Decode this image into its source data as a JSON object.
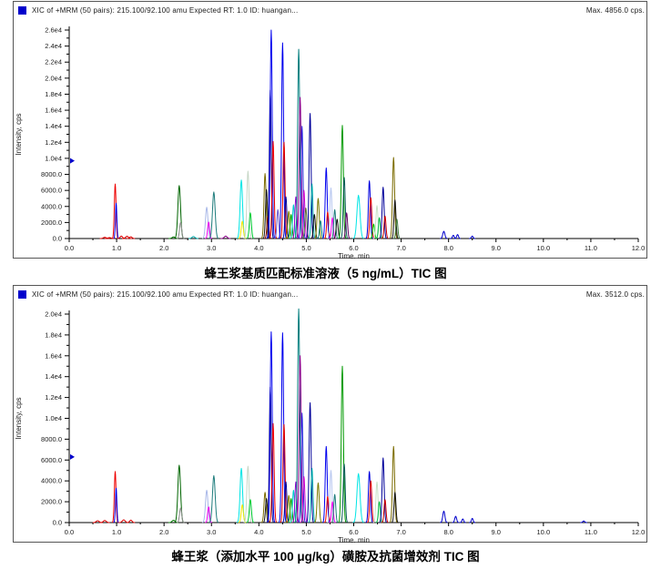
{
  "panels": [
    {
      "header": {
        "icon_color": "#0000CC",
        "title": "XIC of +MRM (50 pairs): 215.100/92.100 amu Expected RT: 1.0 ID: huangan...",
        "max_label": "Max. 4856.0 cps."
      },
      "caption": "蜂王浆基质匹配标准溶液（5 ng/mL）TIC 图"
    },
    {
      "header": {
        "icon_color": "#0000CC",
        "title": "XIC of +MRM (50 pairs): 215.100/92.100 amu Expected RT: 1.0 ID: huangan...",
        "max_label": "Max. 3512.0 cps."
      },
      "caption": "蜂王浆（添加水平 100 μg/kg）磺胺及抗菌增效剂 TIC 图"
    }
  ],
  "chart_data": [
    {
      "type": "line",
      "title": "XIC of +MRM (50 pairs): 215.100/92.100 amu Expected RT: 1.0 ID: huangan...",
      "subtitle": "蜂王浆基质匹配标准溶液（5 ng/mL）TIC 图",
      "max_cps": 4856.0,
      "xlabel": "Time, min",
      "ylabel": "Intensity, cps",
      "x_min": 0.0,
      "x_max": 12.0,
      "y_min": 0,
      "y_max": 26000,
      "grid": false,
      "legend": "none",
      "x_ticks": [
        "0.0",
        "1.0",
        "2.0",
        "3.0",
        "4.0",
        "5.0",
        "6.0",
        "7.0",
        "8.0",
        "9.0",
        "10.0",
        "11.0",
        "12.0"
      ],
      "y_ticks": [
        [
          0,
          "0.0"
        ],
        [
          2000,
          "2000.0"
        ],
        [
          4000,
          "4000.0"
        ],
        [
          6000,
          "6000.0"
        ],
        [
          8000,
          "8000.0"
        ],
        [
          10000,
          "1.0e4"
        ],
        [
          12000,
          "1.2e4"
        ],
        [
          14000,
          "1.4e4"
        ],
        [
          16000,
          "1.6e4"
        ],
        [
          18000,
          "1.8e4"
        ],
        [
          20000,
          "2.0e4"
        ],
        [
          22000,
          "2.2e4"
        ],
        [
          24000,
          "2.4e4"
        ],
        [
          26000,
          "2.6e4"
        ]
      ],
      "edge_marker_cps": 9700,
      "edge_marker_color": "#0000CC",
      "peaks_format": [
        "time_min",
        "intensity_cps",
        "trace_color",
        "sigma_min"
      ],
      "peaks": [
        [
          0.75,
          150,
          "#DD0000",
          0.03
        ],
        [
          0.85,
          120,
          "#DD0000",
          0.03
        ],
        [
          0.97,
          6800,
          "#EE0000",
          0.018
        ],
        [
          0.99,
          4400,
          "#0000EE",
          0.015
        ],
        [
          1.1,
          300,
          "#DD0000",
          0.025
        ],
        [
          1.22,
          280,
          "#DD0000",
          0.03
        ],
        [
          1.3,
          220,
          "#DD0000",
          0.025
        ],
        [
          2.2,
          200,
          "#007700",
          0.03
        ],
        [
          2.32,
          6600,
          "#006400",
          0.028
        ],
        [
          2.35,
          2000,
          "#888888",
          0.022
        ],
        [
          2.62,
          250,
          "#00AAAA",
          0.03
        ],
        [
          2.9,
          3900,
          "#A9B8E8",
          0.026
        ],
        [
          2.94,
          2050,
          "#EE00EE",
          0.02
        ],
        [
          3.05,
          5800,
          "#1E7C7C",
          0.028
        ],
        [
          3.3,
          300,
          "#880088",
          0.03
        ],
        [
          3.63,
          7300,
          "#00E5E5",
          0.026
        ],
        [
          3.65,
          2150,
          "#F5E500",
          0.022
        ],
        [
          3.77,
          8400,
          "#C7D7C7",
          0.024
        ],
        [
          3.82,
          3200,
          "#00CC33",
          0.022
        ],
        [
          4.13,
          8100,
          "#7B6B00",
          0.022
        ],
        [
          4.16,
          6100,
          "#151515",
          0.02
        ],
        [
          4.19,
          2800,
          "#8B0000",
          0.02
        ],
        [
          4.24,
          18500,
          "#000080",
          0.019
        ],
        [
          4.26,
          26000,
          "#0000EE",
          0.021
        ],
        [
          4.3,
          12100,
          "#EE0000",
          0.021
        ],
        [
          4.4,
          3600,
          "#6A5ACD",
          0.02
        ],
        [
          4.5,
          24400,
          "#0000EE",
          0.021
        ],
        [
          4.53,
          12000,
          "#DD0000",
          0.021
        ],
        [
          4.57,
          5200,
          "#000099",
          0.02
        ],
        [
          4.63,
          3400,
          "#808000",
          0.02
        ],
        [
          4.68,
          3000,
          "#00AA00",
          0.02
        ],
        [
          4.73,
          4200,
          "#00CCCC",
          0.02
        ],
        [
          4.78,
          5200,
          "#9400D3",
          0.02
        ],
        [
          4.84,
          23600,
          "#007D7D",
          0.022
        ],
        [
          4.87,
          17600,
          "#8B008B",
          0.021
        ],
        [
          4.91,
          14000,
          "#2222DD",
          0.02
        ],
        [
          4.95,
          6000,
          "#CC00CC",
          0.02
        ],
        [
          4.99,
          3800,
          "#556B2F",
          0.02
        ],
        [
          5.08,
          15600,
          "#000099",
          0.021
        ],
        [
          5.12,
          6800,
          "#00AAAA",
          0.02
        ],
        [
          5.17,
          3000,
          "#151515",
          0.02
        ],
        [
          5.25,
          5000,
          "#7B7B00",
          0.022
        ],
        [
          5.3,
          2200,
          "#008080",
          0.02
        ],
        [
          5.42,
          8800,
          "#0000EE",
          0.021
        ],
        [
          5.45,
          3300,
          "#EE0000",
          0.02
        ],
        [
          5.52,
          6300,
          "#B8C8F0",
          0.022
        ],
        [
          5.55,
          2600,
          "#EE00EE",
          0.02
        ],
        [
          5.6,
          3600,
          "#1E7C7C",
          0.02
        ],
        [
          5.65,
          2400,
          "#151515",
          0.02
        ],
        [
          5.76,
          14100,
          "#009900",
          0.022
        ],
        [
          5.8,
          7600,
          "#0B5B5B",
          0.021
        ],
        [
          5.85,
          3200,
          "#660066",
          0.02
        ],
        [
          6.1,
          5400,
          "#00E5E5",
          0.032
        ],
        [
          6.33,
          7200,
          "#0000DD",
          0.021
        ],
        [
          6.36,
          5100,
          "#EE0000",
          0.021
        ],
        [
          6.42,
          1800,
          "#00CC00",
          0.02
        ],
        [
          6.49,
          4100,
          "#C7E0C7",
          0.022
        ],
        [
          6.54,
          2600,
          "#00BB44",
          0.02
        ],
        [
          6.62,
          6400,
          "#000099",
          0.021
        ],
        [
          6.66,
          2800,
          "#CC0000",
          0.02
        ],
        [
          6.84,
          10100,
          "#7B6B00",
          0.022
        ],
        [
          6.87,
          4800,
          "#151515",
          0.02
        ],
        [
          6.91,
          2400,
          "#408040",
          0.02
        ],
        [
          7.9,
          900,
          "#0000CC",
          0.022
        ],
        [
          8.1,
          400,
          "#0000CC",
          0.018
        ],
        [
          8.19,
          500,
          "#0000CC",
          0.018
        ],
        [
          8.5,
          300,
          "#0000CC",
          0.018
        ]
      ]
    },
    {
      "type": "line",
      "title": "XIC of +MRM (50 pairs): 215.100/92.100 amu Expected RT: 1.0 ID: huangan...",
      "subtitle": "蜂王浆（添加水平 100 μg/kg）磺胺及抗菌增效剂 TIC 图",
      "max_cps": 3512.0,
      "xlabel": "Time, min",
      "ylabel": "Intensity, cps",
      "x_min": 0.0,
      "x_max": 12.0,
      "y_min": 0,
      "y_max": 20000,
      "grid": false,
      "legend": "none",
      "x_ticks": [
        "0.0",
        "1.0",
        "2.0",
        "3.0",
        "4.0",
        "5.0",
        "6.0",
        "7.0",
        "8.0",
        "9.0",
        "10.0",
        "11.0",
        "12.0"
      ],
      "y_ticks": [
        [
          0,
          "0.0"
        ],
        [
          2000,
          "2000.0"
        ],
        [
          4000,
          "4000.0"
        ],
        [
          6000,
          "6000.0"
        ],
        [
          8000,
          "8000.0"
        ],
        [
          10000,
          "1.0e4"
        ],
        [
          12000,
          "1.2e4"
        ],
        [
          14000,
          "1.4e4"
        ],
        [
          16000,
          "1.6e4"
        ],
        [
          18000,
          "1.8e4"
        ],
        [
          20000,
          "2.0e4"
        ]
      ],
      "edge_marker_cps": 6300,
      "edge_marker_color": "#0000CC",
      "peaks_format": [
        "time_min",
        "intensity_cps",
        "trace_color",
        "sigma_min"
      ],
      "peaks": [
        [
          0.6,
          180,
          "#DD0000",
          0.03
        ],
        [
          0.75,
          200,
          "#DD0000",
          0.03
        ],
        [
          0.97,
          4900,
          "#EE0000",
          0.018
        ],
        [
          0.99,
          3300,
          "#0000EE",
          0.015
        ],
        [
          1.15,
          260,
          "#DD0000",
          0.03
        ],
        [
          1.3,
          230,
          "#DD0000",
          0.025
        ],
        [
          2.2,
          220,
          "#007700",
          0.03
        ],
        [
          2.32,
          5500,
          "#006400",
          0.028
        ],
        [
          2.35,
          1400,
          "#888888",
          0.022
        ],
        [
          2.9,
          3100,
          "#A9B8E8",
          0.026
        ],
        [
          2.94,
          1500,
          "#EE00EE",
          0.02
        ],
        [
          3.05,
          4500,
          "#1E7C7C",
          0.028
        ],
        [
          3.63,
          5200,
          "#00E5E5",
          0.026
        ],
        [
          3.65,
          1700,
          "#F5E500",
          0.022
        ],
        [
          3.77,
          5400,
          "#C7D7C7",
          0.024
        ],
        [
          3.82,
          2200,
          "#00CC33",
          0.022
        ],
        [
          4.13,
          2900,
          "#7B6B00",
          0.022
        ],
        [
          4.16,
          2300,
          "#151515",
          0.02
        ],
        [
          4.24,
          13000,
          "#000080",
          0.019
        ],
        [
          4.26,
          18300,
          "#0000EE",
          0.021
        ],
        [
          4.3,
          9500,
          "#EE0000",
          0.021
        ],
        [
          4.5,
          18200,
          "#0000EE",
          0.021
        ],
        [
          4.53,
          9400,
          "#DD0000",
          0.021
        ],
        [
          4.57,
          3900,
          "#000099",
          0.02
        ],
        [
          4.63,
          2600,
          "#808000",
          0.02
        ],
        [
          4.68,
          2300,
          "#00AA00",
          0.02
        ],
        [
          4.73,
          3100,
          "#00CCCC",
          0.02
        ],
        [
          4.78,
          3900,
          "#9400D3",
          0.02
        ],
        [
          4.84,
          20500,
          "#007D7D",
          0.022
        ],
        [
          4.87,
          16000,
          "#8B008B",
          0.021
        ],
        [
          4.91,
          10500,
          "#2222DD",
          0.02
        ],
        [
          4.95,
          4400,
          "#CC00CC",
          0.02
        ],
        [
          5.08,
          11500,
          "#000099",
          0.021
        ],
        [
          5.12,
          5200,
          "#00AAAA",
          0.02
        ],
        [
          5.25,
          3800,
          "#7B7B00",
          0.022
        ],
        [
          5.42,
          7300,
          "#0000EE",
          0.021
        ],
        [
          5.45,
          2500,
          "#EE0000",
          0.02
        ],
        [
          5.52,
          5000,
          "#B8C8F0",
          0.022
        ],
        [
          5.55,
          2000,
          "#EE00EE",
          0.02
        ],
        [
          5.6,
          2700,
          "#1E7C7C",
          0.02
        ],
        [
          5.76,
          15000,
          "#009900",
          0.022
        ],
        [
          5.8,
          5600,
          "#0B5B5B",
          0.021
        ],
        [
          6.1,
          4700,
          "#00E5E5",
          0.032
        ],
        [
          6.33,
          4900,
          "#0000DD",
          0.021
        ],
        [
          6.36,
          4000,
          "#EE0000",
          0.021
        ],
        [
          6.49,
          3900,
          "#C7E0C7",
          0.022
        ],
        [
          6.54,
          2000,
          "#00BB44",
          0.02
        ],
        [
          6.62,
          6200,
          "#000099",
          0.021
        ],
        [
          6.66,
          2200,
          "#CC0000",
          0.02
        ],
        [
          6.84,
          7300,
          "#7B6B00",
          0.022
        ],
        [
          6.87,
          2900,
          "#151515",
          0.02
        ],
        [
          7.9,
          1100,
          "#0000CC",
          0.022
        ],
        [
          8.15,
          600,
          "#0000CC",
          0.02
        ],
        [
          8.3,
          350,
          "#0000CC",
          0.018
        ],
        [
          8.5,
          400,
          "#0000CC",
          0.018
        ],
        [
          10.85,
          150,
          "#0000CC",
          0.02
        ]
      ]
    }
  ]
}
